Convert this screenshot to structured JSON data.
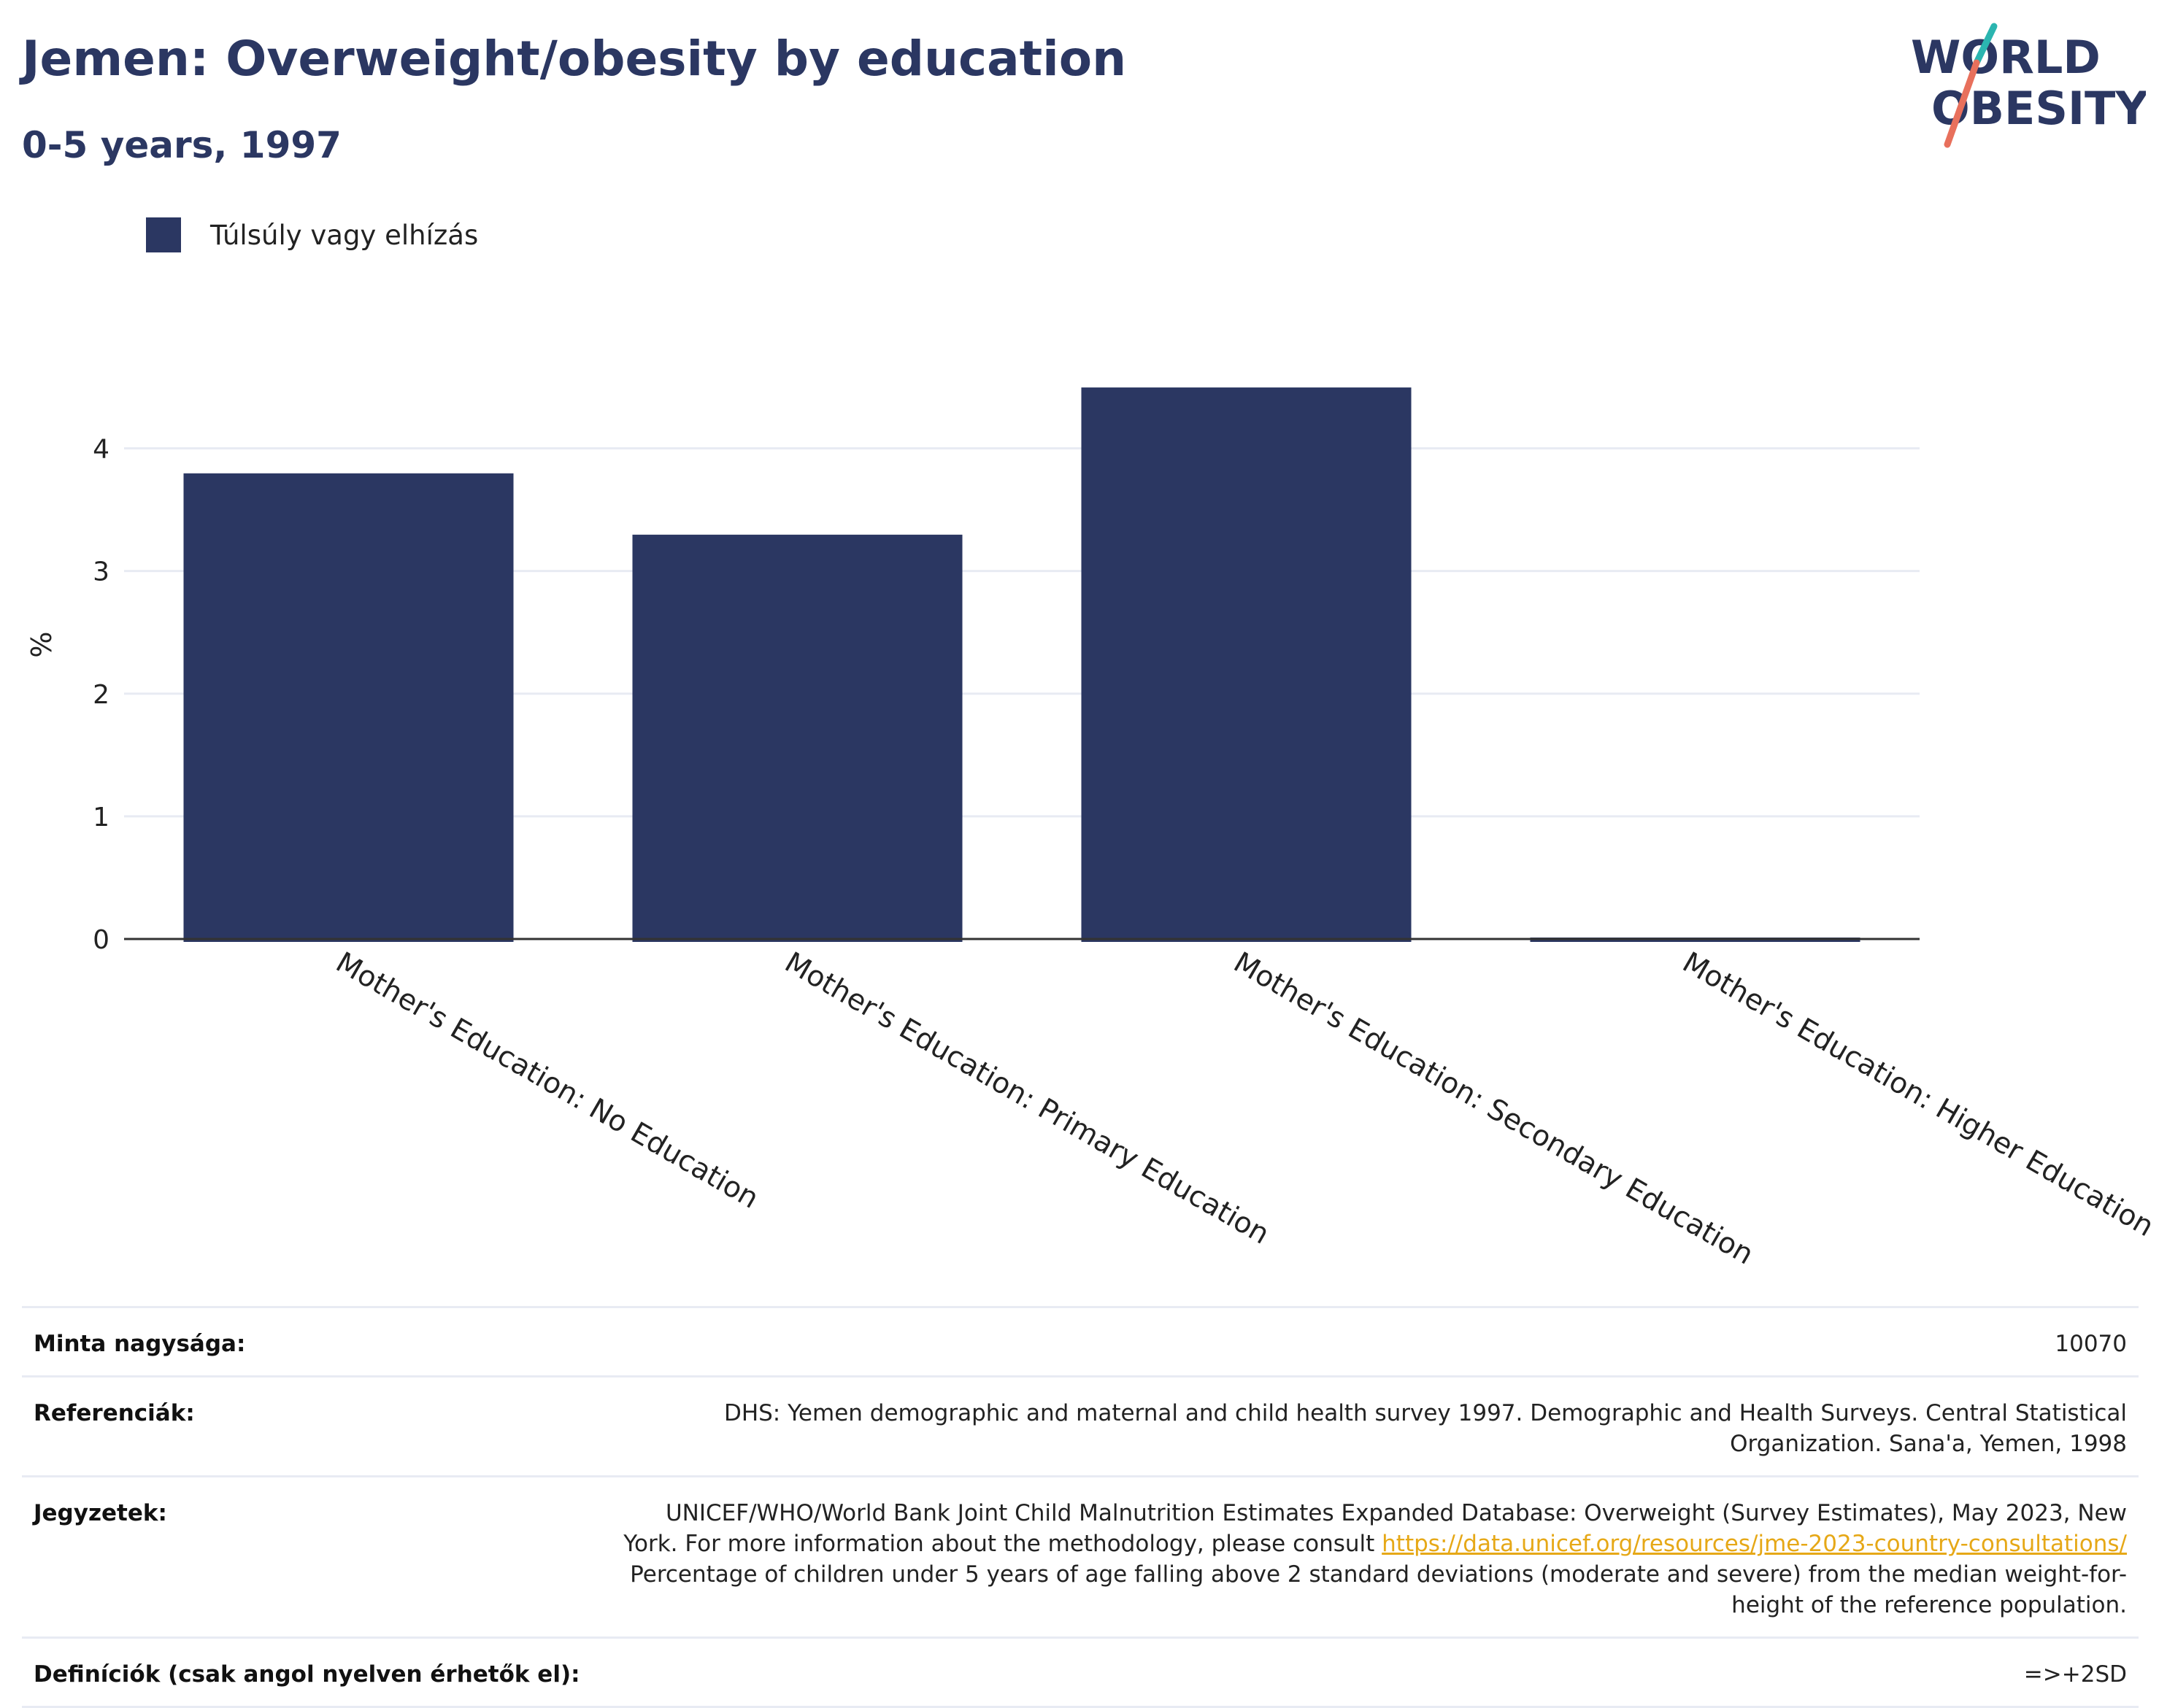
{
  "header": {
    "title": "Jemen: Overweight/obesity by education",
    "subtitle": "0-5 years, 1997"
  },
  "logo": {
    "line1": "WORLD",
    "line2": "OBESITY"
  },
  "legend": {
    "label": "Túlsúly vagy elhízás"
  },
  "colors": {
    "bar": "#2b3762",
    "grid": "#e8ebf3",
    "axis": "#333333",
    "link": "#e6a817",
    "accent_teal": "#2bb5b0",
    "accent_coral": "#e8705c"
  },
  "chart_data": {
    "type": "bar",
    "categories": [
      "Mother's Education: No Education",
      "Mother's Education: Primary Education",
      "Mother's Education: Secondary Education",
      "Mother's Education: Higher Education"
    ],
    "series": [
      {
        "name": "Túlsúly vagy elhízás",
        "values": [
          3.82,
          3.32,
          4.52,
          0.02
        ]
      }
    ],
    "ylabel": "%",
    "yticks": [
      "0",
      "1",
      "2",
      "3",
      "4"
    ],
    "ylim": [
      0,
      4.8
    ],
    "grid": true,
    "legend_position": "top-left"
  },
  "info": {
    "rows": [
      {
        "key": "Minta nagysága:",
        "value": "10070"
      },
      {
        "key": "Referenciák:",
        "value": "DHS: Yemen demographic and maternal and child health survey 1997. Demographic and Health Surveys. Central Statistical Organization. Sana'a, Yemen, 1998"
      },
      {
        "key": "Jegyzetek:",
        "value_before": "UNICEF/WHO/World Bank Joint Child Malnutrition Estimates Expanded Database: Overweight (Survey Estimates), May 2023, New York. For more information about the methodology, please consult ",
        "link": "https://data.unicef.org/resources/jme-2023-country-consultations/",
        "value_after": " Percentage of children under 5 years of age falling above 2 standard deviations (moderate and severe) from the median weight-for-height of the reference population."
      },
      {
        "key": "Definíciók (csak angol nyelven érhetők el):",
        "value": "=>+2SD"
      }
    ]
  }
}
